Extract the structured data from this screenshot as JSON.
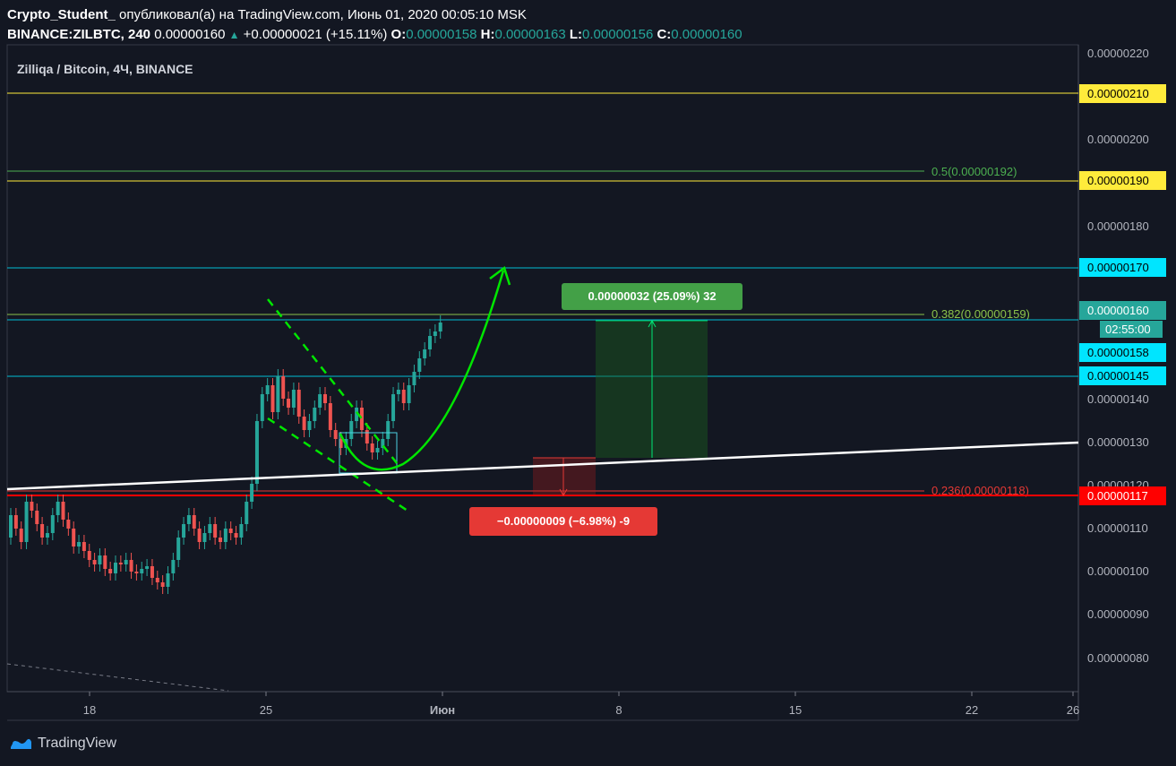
{
  "header": {
    "author": "Crypto_Student_",
    "published": " опубликовал(а) на TradingView.com, Июнь 01, 2020 00:05:10 MSK",
    "symbol": "BINANCE:ZILBTC, 240",
    "price": "0.00000160",
    "change": "+0.00000021 (+15.11%)",
    "o_label": "O:",
    "o": "0.00000158",
    "h_label": "H:",
    "h": "0.00000163",
    "l_label": "L:",
    "l": "0.00000156",
    "c_label": "C:",
    "c": "0.00000160"
  },
  "chart_legend": "Zilliqa / Bitcoin, 4Ч, BINANCE",
  "chart_data": {
    "type": "candlestick",
    "symbol": "ZILBTC",
    "exchange": "BINANCE",
    "interval": "4Ч",
    "ylim": [
      7.5e-07,
      2.23e-06
    ],
    "y_ticks": [
      "0.00000220",
      "0.00000200",
      "0.00000180",
      "0.00000160",
      "0.00000140",
      "0.00000130",
      "0.00000120",
      "0.00000110",
      "0.00000100",
      "0.00000090",
      "0.00000080"
    ],
    "x_ticks": [
      "18",
      "25",
      "Июн",
      "8",
      "15",
      "22",
      "26"
    ],
    "horizontal_levels": [
      {
        "price": 2.1e-06,
        "label": "0.00000210",
        "color": "#ffeb3b",
        "text_color": "#000000"
      },
      {
        "price": 1.9e-06,
        "label": "0.00000190",
        "color": "#ffeb3b",
        "text_color": "#000000"
      },
      {
        "price": 1.7e-06,
        "label": "0.00000170",
        "color": "#00e5ff",
        "text_color": "#000000"
      },
      {
        "price": 1.58e-06,
        "label": "0.00000158",
        "color": "#00e5ff",
        "text_color": "#000000"
      },
      {
        "price": 1.45e-06,
        "label": "0.00000145",
        "color": "#00e5ff",
        "text_color": "#000000"
      },
      {
        "price": 1.17e-06,
        "label": "0.00000117",
        "color": "#ff0000",
        "text_color": "#ffffff"
      }
    ],
    "fib_levels": [
      {
        "ratio": "0.5",
        "price": 1.92e-06,
        "label": "0.5(0.00000192)",
        "color": "#4caf50"
      },
      {
        "ratio": "0.382",
        "price": 1.59e-06,
        "label": "0.382(0.00000159)",
        "color": "#8bc34a"
      },
      {
        "ratio": "0.236",
        "price": 1.18e-06,
        "label": "0.236(0.00000118)",
        "color": "#e53935"
      }
    ],
    "last_price": {
      "label": "0.00000160",
      "countdown": "02:55:00",
      "color": "#26a69a"
    },
    "long_position": {
      "target_label": "0.00000032 (25.09%) 32",
      "stop_label": "−0.00000009 (−6.98%) -9"
    },
    "colors": {
      "up": "#26a69a",
      "down": "#ef5350",
      "trendline": "#ffffff",
      "arrow": "#00e600"
    }
  },
  "footer": {
    "brand": "TradingView"
  }
}
